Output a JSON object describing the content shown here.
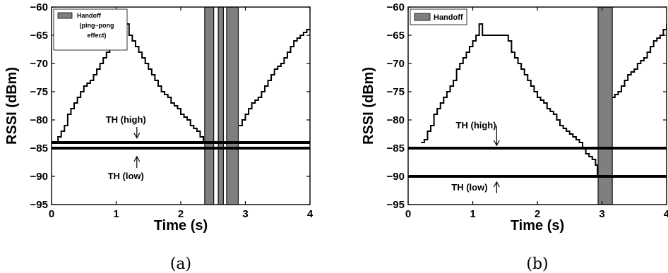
{
  "chart_data": [
    {
      "type": "line",
      "caption": "(a)",
      "xlabel": "Time (s)",
      "ylabel": "RSSI (dBm)",
      "xlim": [
        0,
        4
      ],
      "ylim": [
        -95,
        -60
      ],
      "xticks": [
        0,
        1,
        2,
        3,
        4
      ],
      "yticks": [
        -60,
        -65,
        -70,
        -75,
        -80,
        -85,
        -90,
        -95
      ],
      "grid": false,
      "legend": {
        "label": "Handoff\n(ping–pong\neffect)",
        "placement": "top-left"
      },
      "thresholds": [
        {
          "label": "TH (high)",
          "value": -84
        },
        {
          "label": "TH (low)",
          "value": -85
        }
      ],
      "handoff_intervals": [
        [
          2.37,
          2.51
        ],
        [
          2.58,
          2.66
        ],
        [
          2.71,
          2.89
        ]
      ],
      "annotations": [
        {
          "text": "TH (high)",
          "x": 1.15,
          "y": -80.5,
          "arrow_to": -83.2
        },
        {
          "text": "TH (low)",
          "x": 1.15,
          "y": -90.5,
          "arrow_to": -86.5
        }
      ],
      "series": [
        {
          "x": [
            0.08,
            0.1,
            0.15,
            0.2,
            0.25,
            0.3,
            0.35,
            0.4,
            0.45,
            0.5,
            0.55,
            0.6,
            0.65,
            0.7,
            0.75,
            0.8,
            0.85,
            0.9,
            0.95,
            1.0,
            1.05,
            1.1,
            1.15,
            1.2,
            1.25,
            1.3,
            1.35,
            1.4,
            1.45,
            1.5,
            1.55,
            1.6,
            1.65,
            1.7,
            1.75,
            1.8,
            1.85,
            1.9,
            1.95,
            2.0,
            2.05,
            2.1,
            2.15,
            2.2,
            2.25,
            2.3,
            2.35
          ],
          "y": [
            -84,
            -83,
            -82,
            -81,
            -79,
            -78,
            -77,
            -76,
            -75,
            -74,
            -73.5,
            -73,
            -72,
            -71,
            -70,
            -69,
            -68,
            -67,
            -66,
            -65,
            -64,
            -63,
            -63,
            -65,
            -66,
            -67,
            -68,
            -69,
            -70,
            -71,
            -72,
            -73,
            -74,
            -75,
            -75.5,
            -76,
            -77,
            -77.5,
            -78,
            -79,
            -79.5,
            -80,
            -81,
            -81.5,
            -82,
            -83,
            -84
          ]
        },
        {
          "x": [
            2.9,
            2.95,
            3.0,
            3.05,
            3.1,
            3.15,
            3.2,
            3.25,
            3.3,
            3.35,
            3.4,
            3.45,
            3.5,
            3.55,
            3.6,
            3.65,
            3.7,
            3.75,
            3.8,
            3.85,
            3.9,
            3.95,
            4.0
          ],
          "y": [
            -81,
            -80,
            -79,
            -78,
            -77,
            -76.5,
            -76,
            -75,
            -74,
            -73,
            -72,
            -71,
            -70.5,
            -70,
            -69,
            -68,
            -67,
            -66,
            -65.5,
            -65,
            -64.5,
            -64,
            -64
          ]
        }
      ]
    },
    {
      "type": "line",
      "caption": "(b)",
      "xlabel": "Time (s)",
      "ylabel": "RSSI (dBm)",
      "xlim": [
        0,
        4
      ],
      "ylim": [
        -95,
        -60
      ],
      "xticks": [
        0,
        1,
        2,
        3,
        4
      ],
      "yticks": [
        -60,
        -65,
        -70,
        -75,
        -80,
        -85,
        -90,
        -95
      ],
      "grid": false,
      "legend": {
        "label": "Handoff",
        "placement": "top-left"
      },
      "thresholds": [
        {
          "label": "TH (high)",
          "value": -85
        },
        {
          "label": "TH (low)",
          "value": -90
        }
      ],
      "handoff_intervals": [
        [
          2.94,
          3.16
        ]
      ],
      "annotations": [
        {
          "text": "TH (high)",
          "x": 1.05,
          "y": -81.5,
          "arrow_from": -81,
          "arrow_to": -84.5
        },
        {
          "text": "TH (low)",
          "x": 0.95,
          "y": -92.5,
          "arrow_from": -93,
          "arrow_to": -91
        }
      ],
      "series": [
        {
          "x": [
            0.2,
            0.25,
            0.3,
            0.35,
            0.4,
            0.45,
            0.5,
            0.55,
            0.6,
            0.65,
            0.7,
            0.75,
            0.8,
            0.85,
            0.9,
            0.95,
            1.0,
            1.05,
            1.1,
            1.15,
            1.2,
            1.25,
            1.3,
            1.35,
            1.4,
            1.45,
            1.5,
            1.55,
            1.6,
            1.65,
            1.7,
            1.75,
            1.8,
            1.85,
            1.9,
            1.95,
            2.0,
            2.05,
            2.1,
            2.15,
            2.2,
            2.25,
            2.3,
            2.35,
            2.4,
            2.45,
            2.5,
            2.55,
            2.6,
            2.65,
            2.7,
            2.75,
            2.8,
            2.85,
            2.9,
            2.93
          ],
          "y": [
            -84,
            -83.5,
            -82,
            -81,
            -79,
            -78,
            -77,
            -76,
            -75,
            -74,
            -73,
            -71,
            -70,
            -69,
            -68,
            -67,
            -66,
            -65,
            -63,
            -65,
            -65,
            -65,
            -65,
            -65,
            -65,
            -65,
            -65,
            -66,
            -68,
            -69,
            -70,
            -71,
            -72,
            -73,
            -74,
            -75,
            -76,
            -76.5,
            -77,
            -78,
            -78.5,
            -79,
            -80,
            -81,
            -81.5,
            -82,
            -82.5,
            -83,
            -83.5,
            -84,
            -85,
            -86,
            -86.5,
            -87,
            -88,
            -90
          ]
        },
        {
          "x": [
            3.16,
            3.2,
            3.25,
            3.3,
            3.35,
            3.4,
            3.45,
            3.5,
            3.55,
            3.6,
            3.65,
            3.7,
            3.75,
            3.8,
            3.85,
            3.9,
            3.95,
            4.0
          ],
          "y": [
            -76,
            -75.5,
            -75,
            -74,
            -73,
            -72,
            -71.5,
            -71,
            -70,
            -69.5,
            -69,
            -68,
            -67,
            -66,
            -65.5,
            -65,
            -64,
            -63
          ]
        }
      ]
    }
  ]
}
